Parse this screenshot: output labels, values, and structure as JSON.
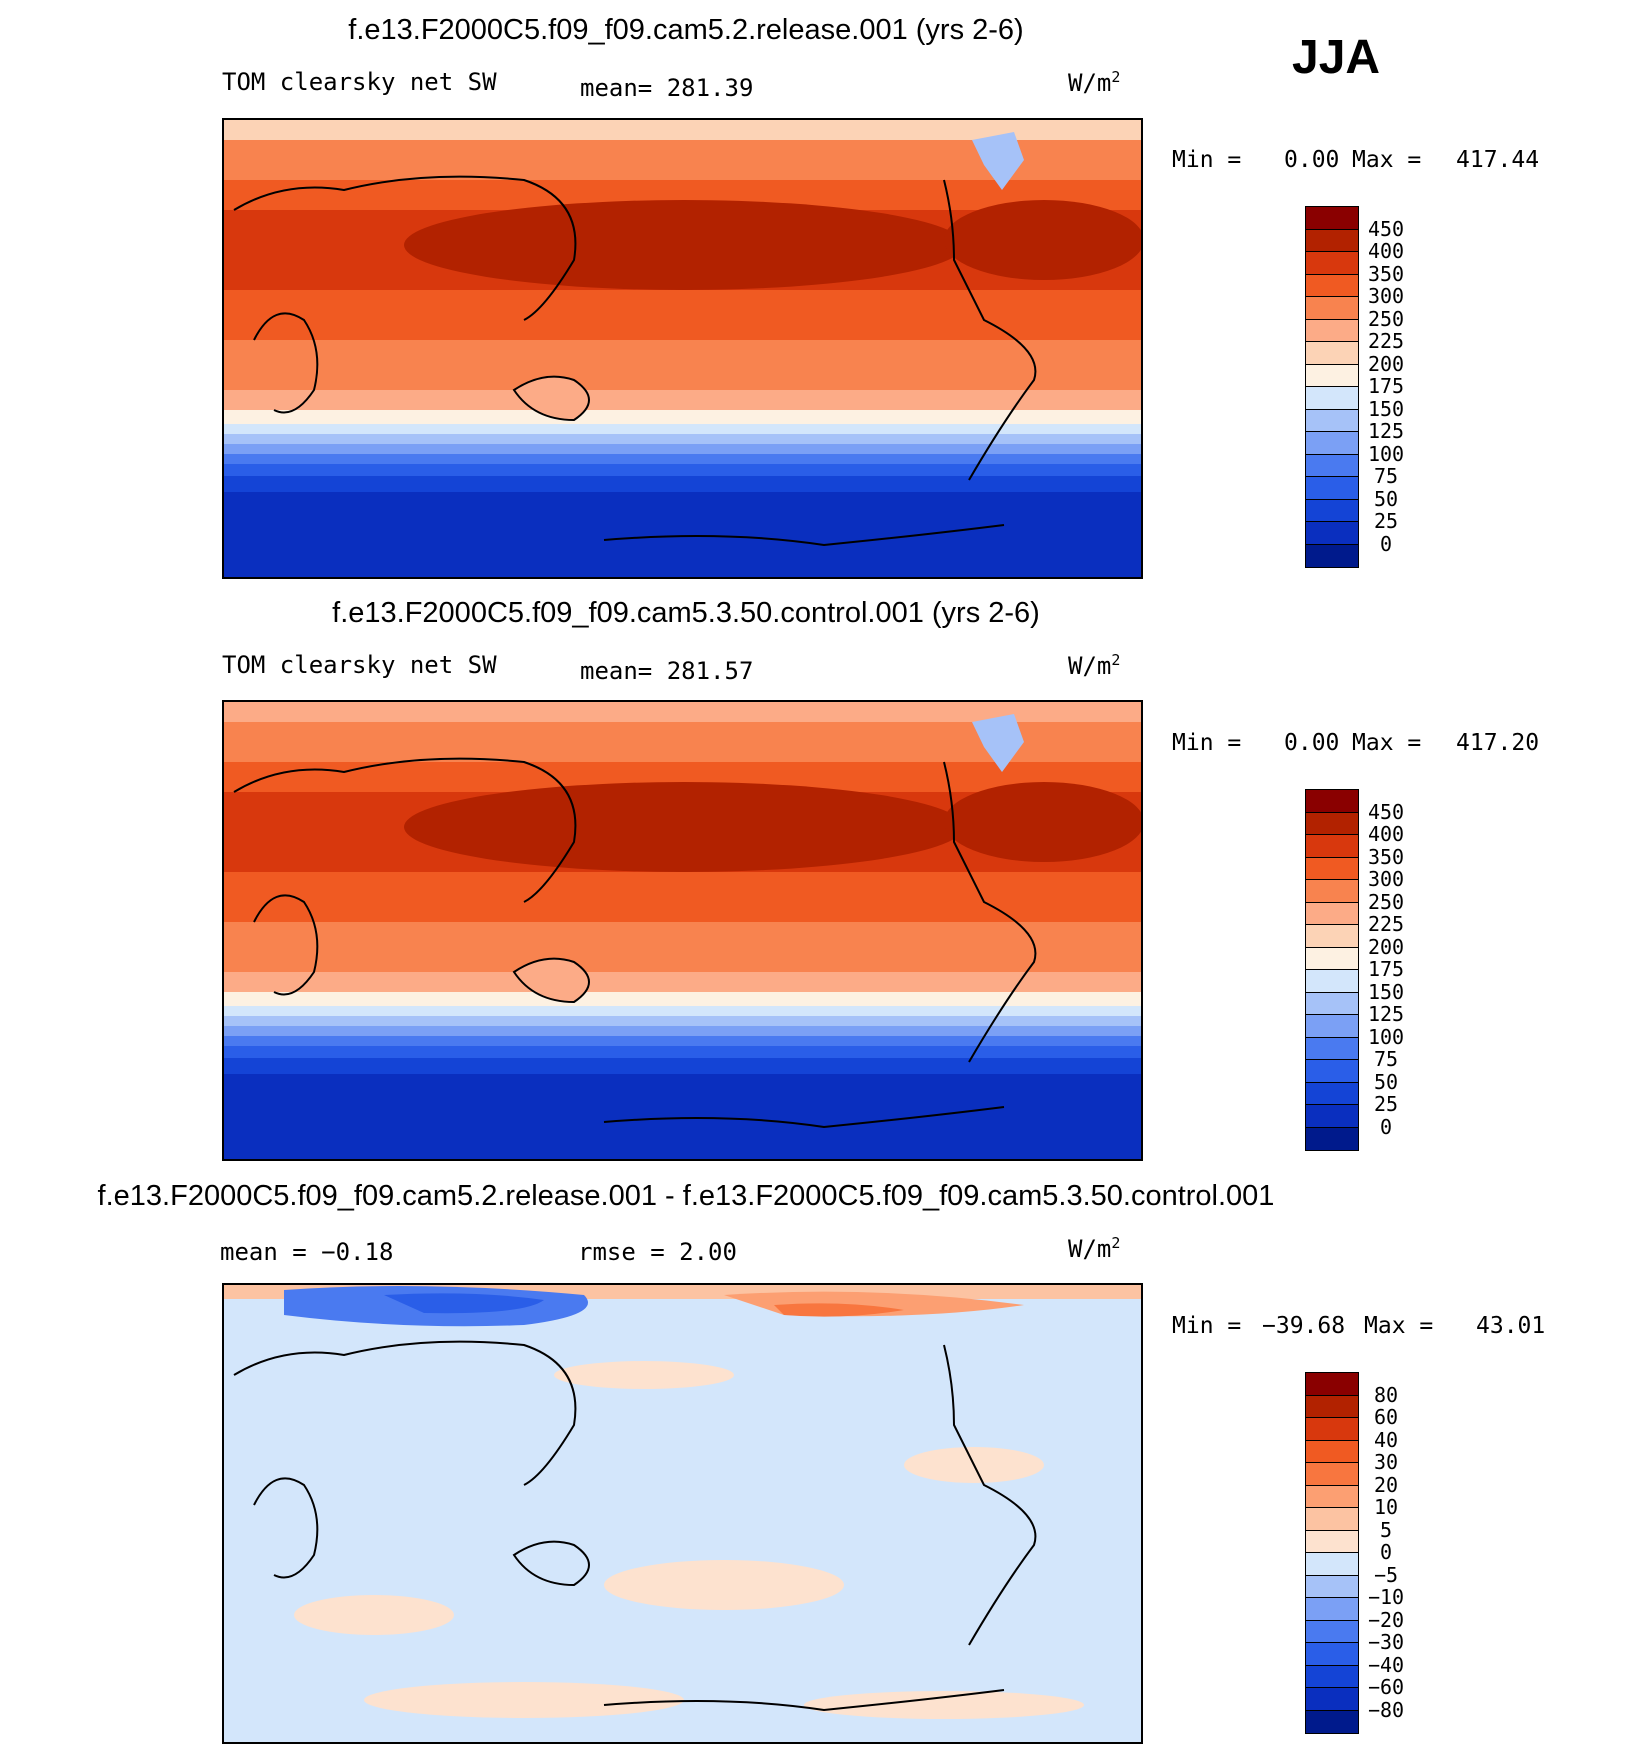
{
  "season": "JJA",
  "colors": {
    "abs_scale": [
      "#001a8c",
      "#0a2fbf",
      "#1444d6",
      "#2a5ee8",
      "#4a7af0",
      "#7ba0f5",
      "#a6c2f8",
      "#d3e6fb",
      "#fdf1e2",
      "#fcd3b6",
      "#fcab87",
      "#f8834f",
      "#f05a22",
      "#d8380d",
      "#b22200",
      "#8a0000"
    ],
    "diff_scale": [
      "#001a8c",
      "#0a2fbf",
      "#1444d6",
      "#2a5ee8",
      "#4a7af0",
      "#7ba0f5",
      "#a6c2f8",
      "#d3e6fb",
      "#fde2cf",
      "#fcc3a2",
      "#fc9f72",
      "#f8763f",
      "#f05a22",
      "#d8380d",
      "#b22200",
      "#8a0000"
    ]
  },
  "panels": [
    {
      "title": "f.e13.F2000C5.f09_f09.cam5.2.release.001 (yrs 2-6)",
      "left_label": "TOM clearsky net SW",
      "center_label": "mean= 281.39",
      "units_base": "W/m",
      "units_exp": "2",
      "min_label": "Min =",
      "min_value": "0.00",
      "max_label": "Max =",
      "max_value": "417.44",
      "colorbar_ticks": [
        "450",
        "400",
        "350",
        "300",
        "250",
        "225",
        "200",
        "175",
        "150",
        "125",
        "100",
        "75",
        "50",
        "25",
        "0"
      ]
    },
    {
      "title": "f.e13.F2000C5.f09_f09.cam5.3.50.control.001 (yrs 2-6)",
      "left_label": "TOM clearsky net SW",
      "center_label": "mean= 281.57",
      "units_base": "W/m",
      "units_exp": "2",
      "min_label": "Min =",
      "min_value": "0.00",
      "max_label": "Max =",
      "max_value": "417.20",
      "colorbar_ticks": [
        "450",
        "400",
        "350",
        "300",
        "250",
        "225",
        "200",
        "175",
        "150",
        "125",
        "100",
        "75",
        "50",
        "25",
        "0"
      ]
    },
    {
      "title": "f.e13.F2000C5.f09_f09.cam5.2.release.001 - f.e13.F2000C5.f09_f09.cam5.3.50.control.001",
      "left_label": "mean =   −0.18",
      "center_label": "rmse =    2.00",
      "units_base": "W/m",
      "units_exp": "2",
      "min_label": "Min =",
      "min_value": "−39.68",
      "max_label": "Max =",
      "max_value": "43.01",
      "colorbar_ticks": [
        "80",
        "60",
        "40",
        "30",
        "20",
        "10",
        "5",
        "0",
        "−5",
        "−10",
        "−20",
        "−30",
        "−40",
        "−60",
        "−80"
      ]
    }
  ]
}
